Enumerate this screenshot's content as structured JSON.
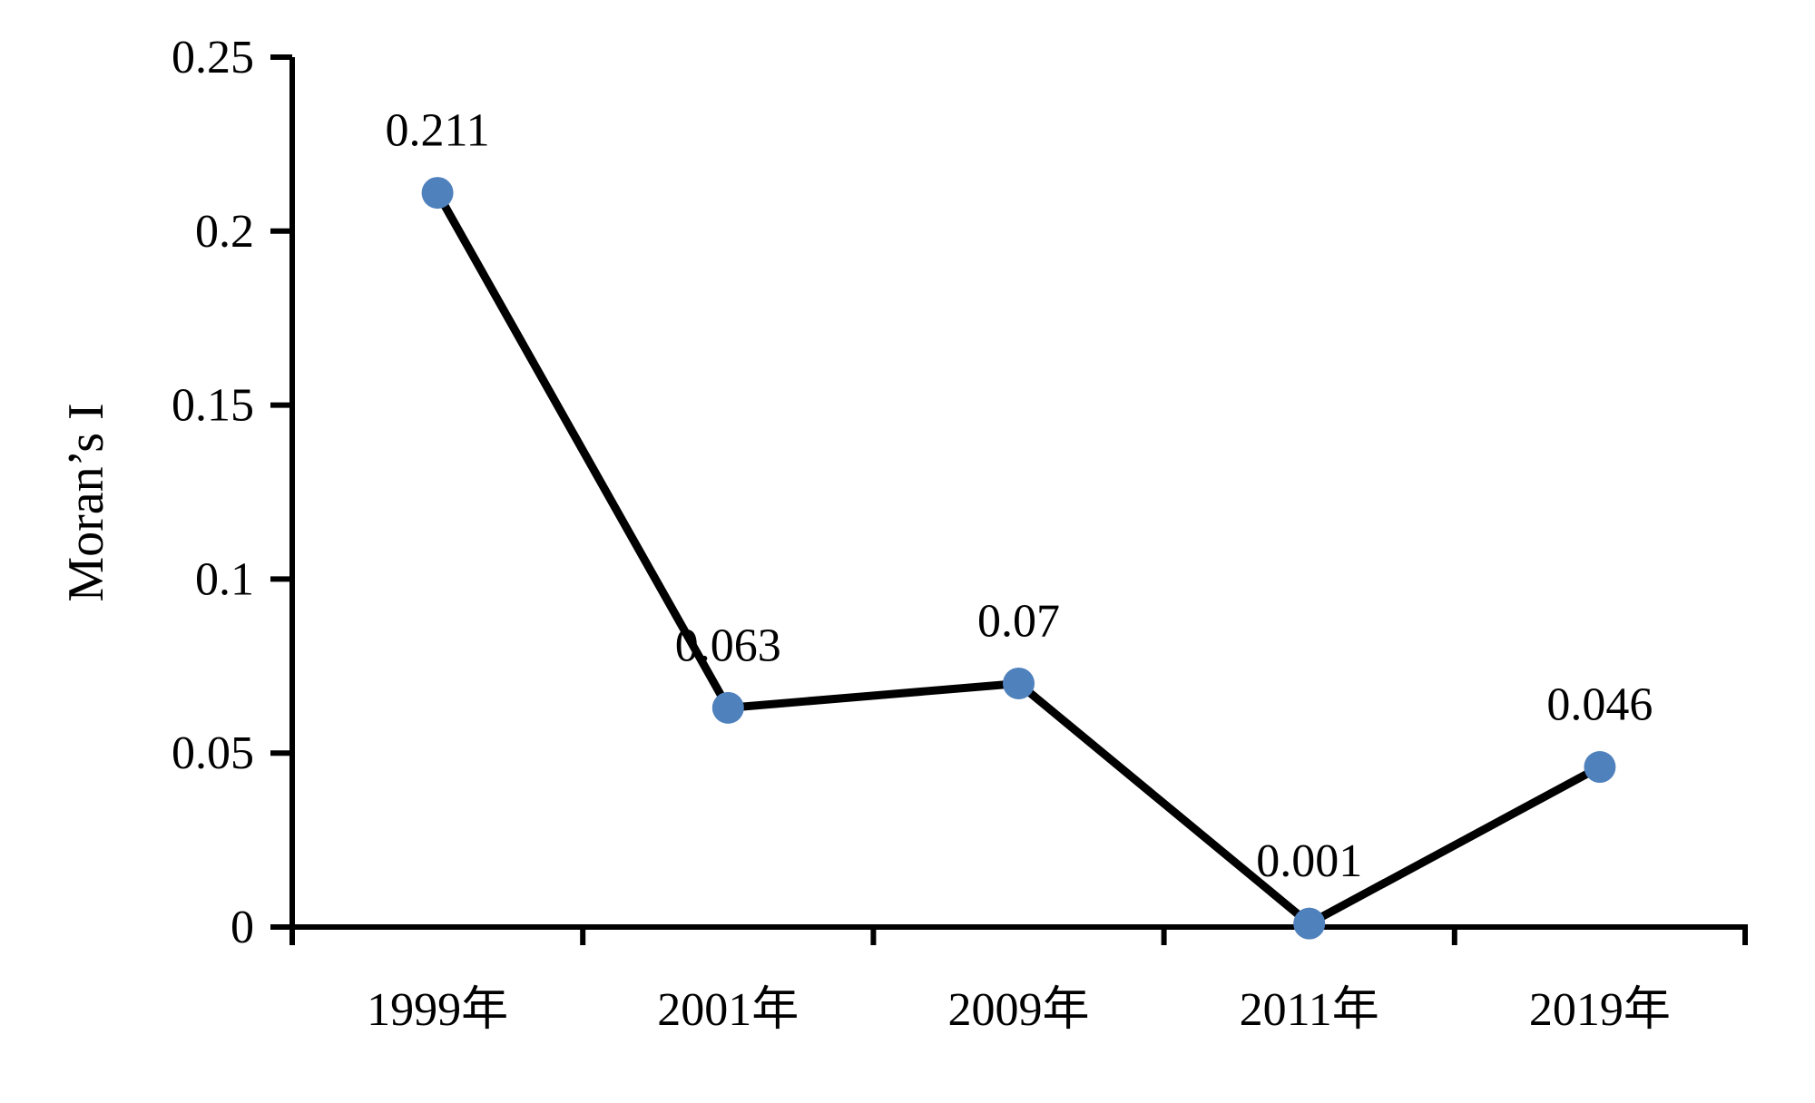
{
  "figure": {
    "background_color": "#ffffff",
    "text_color": "#000000"
  },
  "chart_data": {
    "type": "line",
    "title": "",
    "categories": [
      "1999年",
      "2001年",
      "2009年",
      "2011年",
      "2019年"
    ],
    "series": [
      {
        "name": "Moran's I",
        "values": [
          0.211,
          0.063,
          0.07,
          0.001,
          0.046
        ]
      }
    ],
    "data_labels": [
      "0.211",
      "0.063",
      "0.07",
      "0.001",
      "0.046"
    ],
    "xlabel": "",
    "ylabel": "Moran’s I",
    "ylim": [
      0,
      0.25
    ],
    "y_ticks": [
      0,
      0.05,
      0.1,
      0.15,
      0.2,
      0.25
    ],
    "y_tick_labels": [
      "0",
      "0.05",
      "0.1",
      "0.15",
      "0.2",
      "0.25"
    ],
    "grid": false,
    "legend_position": "none",
    "line_color": "#000000",
    "marker_color": "#4f81bd",
    "axis_color": "#000000"
  }
}
